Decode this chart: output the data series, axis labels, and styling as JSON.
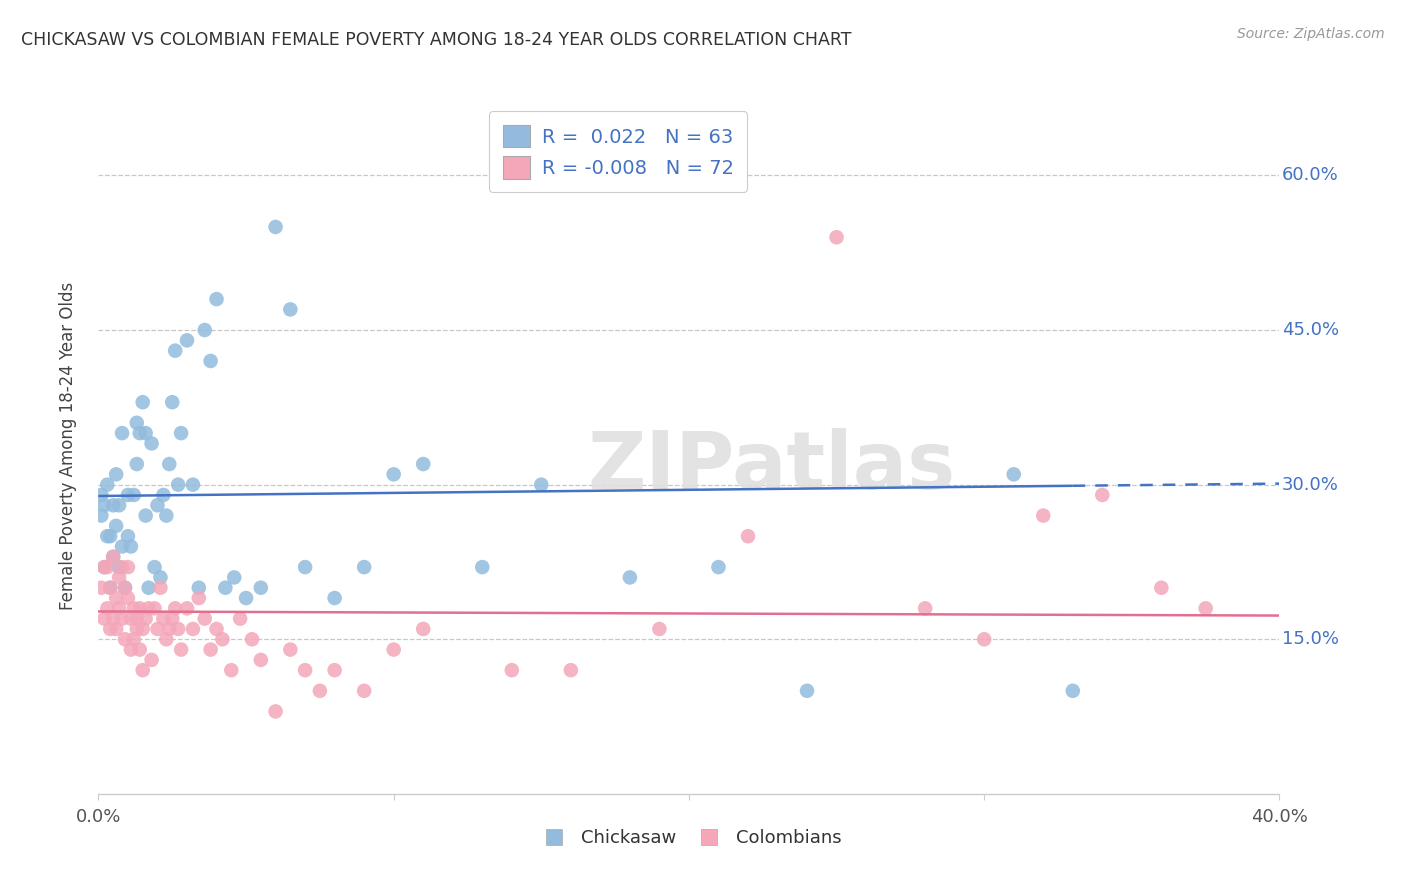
{
  "title": "CHICKASAW VS COLOMBIAN FEMALE POVERTY AMONG 18-24 YEAR OLDS CORRELATION CHART",
  "source": "Source: ZipAtlas.com",
  "ylabel": "Female Poverty Among 18-24 Year Olds",
  "ytick_vals": [
    0.6,
    0.45,
    0.3,
    0.15
  ],
  "ytick_labels": [
    "60.0%",
    "45.0%",
    "30.0%",
    "15.0%"
  ],
  "xlim": [
    0.0,
    0.4
  ],
  "ylim": [
    0.0,
    0.675
  ],
  "legend_blue_r": "0.022",
  "legend_blue_n": "63",
  "legend_pink_r": "-0.008",
  "legend_pink_n": "72",
  "color_blue": "#92BBDD",
  "color_pink": "#F4A7B9",
  "line_blue": "#4472C4",
  "line_pink": "#E07090",
  "watermark": "ZIPatlas",
  "chickasaw_x": [
    0.001,
    0.001,
    0.002,
    0.002,
    0.003,
    0.003,
    0.004,
    0.004,
    0.005,
    0.005,
    0.006,
    0.006,
    0.007,
    0.007,
    0.008,
    0.008,
    0.009,
    0.01,
    0.01,
    0.011,
    0.012,
    0.013,
    0.013,
    0.014,
    0.015,
    0.016,
    0.016,
    0.017,
    0.018,
    0.019,
    0.02,
    0.021,
    0.022,
    0.023,
    0.024,
    0.025,
    0.026,
    0.027,
    0.028,
    0.03,
    0.032,
    0.034,
    0.036,
    0.038,
    0.04,
    0.043,
    0.046,
    0.05,
    0.055,
    0.06,
    0.065,
    0.07,
    0.08,
    0.09,
    0.1,
    0.11,
    0.13,
    0.15,
    0.18,
    0.21,
    0.24,
    0.31,
    0.33
  ],
  "chickasaw_y": [
    0.29,
    0.27,
    0.28,
    0.22,
    0.3,
    0.25,
    0.2,
    0.25,
    0.23,
    0.28,
    0.26,
    0.31,
    0.28,
    0.22,
    0.35,
    0.24,
    0.2,
    0.25,
    0.29,
    0.24,
    0.29,
    0.32,
    0.36,
    0.35,
    0.38,
    0.27,
    0.35,
    0.2,
    0.34,
    0.22,
    0.28,
    0.21,
    0.29,
    0.27,
    0.32,
    0.38,
    0.43,
    0.3,
    0.35,
    0.44,
    0.3,
    0.2,
    0.45,
    0.42,
    0.48,
    0.2,
    0.21,
    0.19,
    0.2,
    0.55,
    0.47,
    0.22,
    0.19,
    0.22,
    0.31,
    0.32,
    0.22,
    0.3,
    0.21,
    0.22,
    0.1,
    0.31,
    0.1
  ],
  "colombian_x": [
    0.001,
    0.002,
    0.002,
    0.003,
    0.003,
    0.004,
    0.004,
    0.005,
    0.005,
    0.006,
    0.006,
    0.007,
    0.007,
    0.008,
    0.008,
    0.009,
    0.009,
    0.01,
    0.01,
    0.011,
    0.011,
    0.012,
    0.012,
    0.013,
    0.013,
    0.014,
    0.014,
    0.015,
    0.015,
    0.016,
    0.017,
    0.018,
    0.019,
    0.02,
    0.021,
    0.022,
    0.023,
    0.024,
    0.025,
    0.026,
    0.027,
    0.028,
    0.03,
    0.032,
    0.034,
    0.036,
    0.038,
    0.04,
    0.042,
    0.045,
    0.048,
    0.052,
    0.055,
    0.06,
    0.065,
    0.07,
    0.075,
    0.08,
    0.09,
    0.1,
    0.11,
    0.14,
    0.16,
    0.19,
    0.22,
    0.25,
    0.28,
    0.3,
    0.32,
    0.34,
    0.36,
    0.375
  ],
  "colombian_y": [
    0.2,
    0.22,
    0.17,
    0.18,
    0.22,
    0.16,
    0.2,
    0.17,
    0.23,
    0.19,
    0.16,
    0.21,
    0.18,
    0.22,
    0.17,
    0.2,
    0.15,
    0.19,
    0.22,
    0.17,
    0.14,
    0.18,
    0.15,
    0.17,
    0.16,
    0.14,
    0.18,
    0.12,
    0.16,
    0.17,
    0.18,
    0.13,
    0.18,
    0.16,
    0.2,
    0.17,
    0.15,
    0.16,
    0.17,
    0.18,
    0.16,
    0.14,
    0.18,
    0.16,
    0.19,
    0.17,
    0.14,
    0.16,
    0.15,
    0.12,
    0.17,
    0.15,
    0.13,
    0.08,
    0.14,
    0.12,
    0.1,
    0.12,
    0.1,
    0.14,
    0.16,
    0.12,
    0.12,
    0.16,
    0.25,
    0.54,
    0.18,
    0.15,
    0.27,
    0.29,
    0.2,
    0.18
  ]
}
